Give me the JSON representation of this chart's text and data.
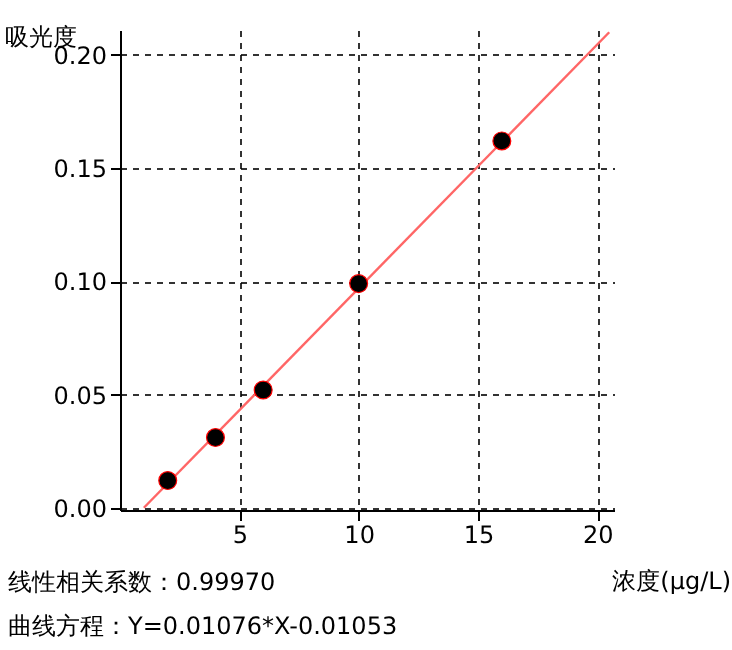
{
  "chart_data": {
    "type": "scatter",
    "xlabel": "浓度(μg/L)",
    "ylabel": "吸光度",
    "annotations": [
      "线性相关系数：0.99970",
      "曲线方程：Y=0.01076*X-0.01053"
    ],
    "series": [
      {
        "color": "#000000",
        "x": [
          2,
          4,
          6,
          10,
          16
        ],
        "values": [
          0.012,
          0.031,
          0.052,
          0.099,
          0.162
        ]
      },
      {
        "type": "line",
        "marker": "none",
        "color": "#ff6666",
        "x": [
          1,
          20.5
        ],
        "values": [
          0.0,
          0.21
        ]
      }
    ],
    "xlim": [
      0,
      20.7
    ],
    "xticks": [
      5,
      10,
      15,
      20
    ],
    "ylim": [
      -0.001,
      0.211
    ],
    "yticks": [
      {
        "value": 0,
        "label": "0.00"
      },
      {
        "value": 0.05,
        "label": "0.05"
      },
      {
        "value": 0.1,
        "label": "0.10"
      },
      {
        "value": 0.15,
        "label": "0.15"
      },
      {
        "value": 0.2,
        "label": "0.20"
      }
    ],
    "grid": true,
    "marker": "circle",
    "line_style": "solid"
  }
}
